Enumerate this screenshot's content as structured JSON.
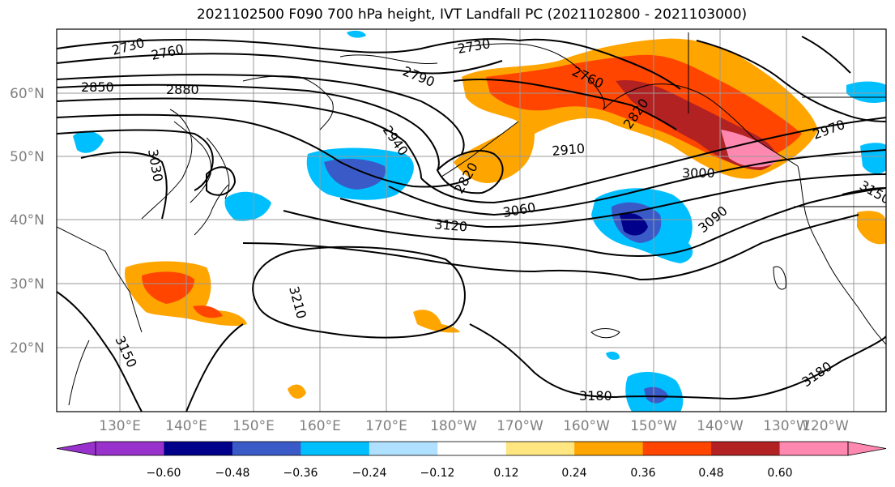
{
  "title": "2021102500 F090 700 hPa height, IVT Landfall PC (2021102800 - 2021103000)",
  "lat_labels": [
    "60°N",
    "50°N",
    "40°N",
    "30°N",
    "20°N"
  ],
  "lon_labels": [
    "130°E",
    "140°E",
    "150°E",
    "160°E",
    "170°E",
    "180°W",
    "170°W",
    "160°W",
    "150°W",
    "140°W",
    "130°W",
    "120°W"
  ],
  "contour_labels": [
    "2730",
    "2760",
    "2850",
    "2880",
    "2790",
    "2730",
    "2760",
    "2820",
    "3030",
    "2940",
    "2910",
    "2820",
    "2970",
    "3000",
    "3060",
    "3120",
    "3090",
    "3150",
    "3210",
    "3150",
    "3180",
    "3180"
  ],
  "colorbar": {
    "ticks": [
      "−0.60",
      "−0.48",
      "−0.36",
      "−0.24",
      "−0.12",
      "0.12",
      "0.24",
      "0.36",
      "0.48",
      "0.60"
    ],
    "colors": [
      "#9932cc",
      "#00008b",
      "#3a5bc7",
      "#00bfff",
      "#b0e0ff",
      "#ffffff",
      "#ffe680",
      "#ffa500",
      "#ff4500",
      "#b22222",
      "#ff88b0",
      "#ff88b0"
    ]
  }
}
